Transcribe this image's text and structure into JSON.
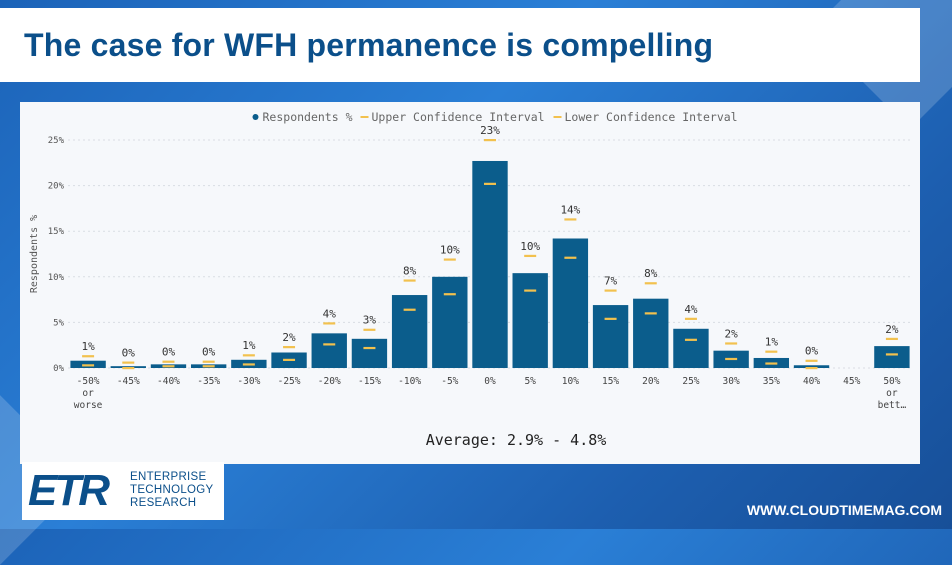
{
  "page": {
    "title": "The case for WFH permanence is compelling",
    "site_url": "WWW.CLOUDTIMEMAG.COM"
  },
  "logo": {
    "mark": "ETR",
    "lines": [
      "ENTERPRISE",
      "TECHNOLOGY",
      "RESEARCH"
    ]
  },
  "colors": {
    "bar": "#0b5d8c",
    "confidence": "#f2c14e",
    "title": "#0b4f8a"
  },
  "chart_data": {
    "type": "bar",
    "title": "",
    "xlabel": "",
    "ylabel": "Respondents %",
    "ylim": [
      0,
      25
    ],
    "y_ticks": [
      "0%",
      "5%",
      "10%",
      "15%",
      "20%",
      "25%"
    ],
    "grid": true,
    "legend_position": "top-center",
    "legend": [
      "Respondents %",
      "Upper Confidence Interval",
      "Lower Confidence Interval"
    ],
    "categories": [
      [
        "-50%",
        "or",
        "worse"
      ],
      [
        "-45%"
      ],
      [
        "-40%"
      ],
      [
        "-35%"
      ],
      [
        "-30%"
      ],
      [
        "-25%"
      ],
      [
        "-20%"
      ],
      [
        "-15%"
      ],
      [
        "-10%"
      ],
      [
        "-5%"
      ],
      [
        "0%"
      ],
      [
        "5%"
      ],
      [
        "10%"
      ],
      [
        "15%"
      ],
      [
        "20%"
      ],
      [
        "25%"
      ],
      [
        "30%"
      ],
      [
        "35%"
      ],
      [
        "40%"
      ],
      [
        "45%"
      ],
      [
        "50%",
        "or",
        "bett…"
      ]
    ],
    "series": [
      {
        "name": "Respondents %",
        "values": [
          0.8,
          0.2,
          0.4,
          0.4,
          0.9,
          1.7,
          3.8,
          3.2,
          8.0,
          10.0,
          22.7,
          10.4,
          14.2,
          6.9,
          7.6,
          4.3,
          1.9,
          1.1,
          0.3,
          0.0,
          2.4
        ],
        "labels": [
          "1%",
          "0%",
          "0%",
          "0%",
          "1%",
          "2%",
          "4%",
          "3%",
          "8%",
          "10%",
          "23%",
          "10%",
          "14%",
          "7%",
          "8%",
          "4%",
          "2%",
          "1%",
          "0%",
          "",
          "2%"
        ]
      },
      {
        "name": "Upper Confidence Interval",
        "values": [
          1.3,
          0.6,
          0.7,
          0.7,
          1.4,
          2.3,
          4.9,
          4.2,
          9.6,
          11.9,
          25.0,
          12.3,
          16.3,
          8.5,
          9.3,
          5.4,
          2.7,
          1.8,
          0.8,
          null,
          3.2
        ]
      },
      {
        "name": "Lower Confidence Interval",
        "values": [
          0.3,
          0.0,
          0.2,
          0.2,
          0.4,
          0.9,
          2.6,
          2.2,
          6.4,
          8.1,
          20.2,
          8.5,
          12.1,
          5.4,
          6.0,
          3.1,
          1.0,
          0.5,
          0.0,
          null,
          1.5
        ]
      }
    ],
    "annotation": "Average: 2.9% - 4.8%"
  }
}
